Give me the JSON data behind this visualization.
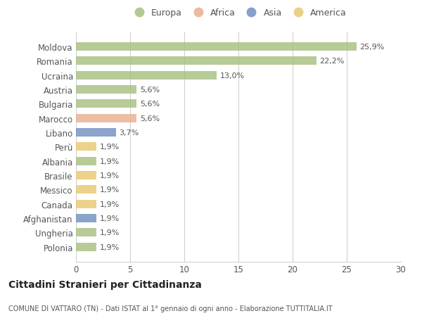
{
  "categories": [
    "Moldova",
    "Romania",
    "Ucraina",
    "Austria",
    "Bulgaria",
    "Marocco",
    "Libano",
    "Perù",
    "Albania",
    "Brasile",
    "Messico",
    "Canada",
    "Afghanistan",
    "Ungheria",
    "Polonia"
  ],
  "values": [
    25.9,
    22.2,
    13.0,
    5.6,
    5.6,
    5.6,
    3.7,
    1.9,
    1.9,
    1.9,
    1.9,
    1.9,
    1.9,
    1.9,
    1.9
  ],
  "labels": [
    "25,9%",
    "22,2%",
    "13,0%",
    "5,6%",
    "5,6%",
    "5,6%",
    "3,7%",
    "1,9%",
    "1,9%",
    "1,9%",
    "1,9%",
    "1,9%",
    "1,9%",
    "1,9%",
    "1,9%"
  ],
  "continents": [
    "Europa",
    "Europa",
    "Europa",
    "Europa",
    "Europa",
    "Africa",
    "Asia",
    "America",
    "Europa",
    "America",
    "America",
    "America",
    "Asia",
    "Europa",
    "Europa"
  ],
  "colors": {
    "Europa": "#a8c080",
    "Africa": "#e8b090",
    "Asia": "#7090c0",
    "America": "#e8c870"
  },
  "legend_order": [
    "Europa",
    "Africa",
    "Asia",
    "America"
  ],
  "xlim": [
    0,
    30
  ],
  "xticks": [
    0,
    5,
    10,
    15,
    20,
    25,
    30
  ],
  "title": "Cittadini Stranieri per Cittadinanza",
  "subtitle": "COMUNE DI VATTARO (TN) - Dati ISTAT al 1° gennaio di ogni anno - Elaborazione TUTTITALIA.IT",
  "background_color": "#ffffff",
  "grid_color": "#cccccc"
}
